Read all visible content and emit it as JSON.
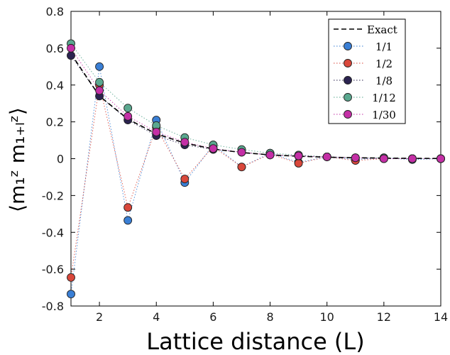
{
  "chart_data": {
    "type": "scatter",
    "xlabel": "Lattice distance (L)",
    "ylabel": "⟨m₁ᶻ m₁₊ₗᶻ⟩",
    "xlim": [
      1,
      14
    ],
    "ylim": [
      -0.8,
      0.8
    ],
    "xticks": [
      2,
      4,
      6,
      8,
      10,
      12,
      14
    ],
    "yticks": [
      0.8,
      0.6,
      0.4,
      0.2,
      0,
      -0.2,
      -0.4,
      -0.6,
      -0.8
    ],
    "ytick_labels": [
      "0.8",
      "0.6",
      "0.4",
      "0.2",
      "0",
      "-0.2",
      "-0.4",
      "-0.6",
      "-0.8"
    ],
    "grid": false,
    "legend_position": "top-right",
    "x": [
      1,
      2,
      3,
      4,
      5,
      6,
      7,
      8,
      9,
      10,
      11,
      12,
      13,
      14
    ],
    "exact": {
      "name": "Exact",
      "color": "#000000",
      "values": [
        0.57,
        0.34,
        0.215,
        0.135,
        0.085,
        0.053,
        0.033,
        0.021,
        0.013,
        0.008,
        0.005,
        0.003,
        0.002,
        0.001
      ]
    },
    "series": [
      {
        "name": "1/1",
        "color": "#3a7fd5",
        "values": [
          -0.735,
          0.5,
          -0.335,
          0.21,
          -0.13,
          0.075,
          -0.045,
          0.03,
          -0.02,
          0.01,
          -0.005,
          0.005,
          -0.005,
          0.0
        ]
      },
      {
        "name": "1/2",
        "color": "#d9473b",
        "values": [
          -0.645,
          0.4,
          -0.265,
          0.17,
          -0.11,
          0.065,
          -0.045,
          0.025,
          -0.025,
          0.01,
          -0.01,
          0.0,
          0.0,
          0.0
        ]
      },
      {
        "name": "1/8",
        "color": "#2b2350",
        "values": [
          0.56,
          0.34,
          0.21,
          0.125,
          0.075,
          0.05,
          0.035,
          0.02,
          0.015,
          0.01,
          0.005,
          0.0,
          0.0,
          0.0
        ]
      },
      {
        "name": "1/12",
        "color": "#5aa88f",
        "values": [
          0.625,
          0.415,
          0.275,
          0.18,
          0.115,
          0.075,
          0.05,
          0.03,
          0.02,
          0.01,
          0.005,
          0.005,
          0.0,
          0.0
        ]
      },
      {
        "name": "1/30",
        "color": "#c42fa6",
        "values": [
          0.6,
          0.37,
          0.23,
          0.145,
          0.09,
          0.055,
          0.035,
          0.02,
          0.015,
          0.01,
          0.005,
          0.0,
          0.0,
          0.0
        ]
      }
    ]
  }
}
